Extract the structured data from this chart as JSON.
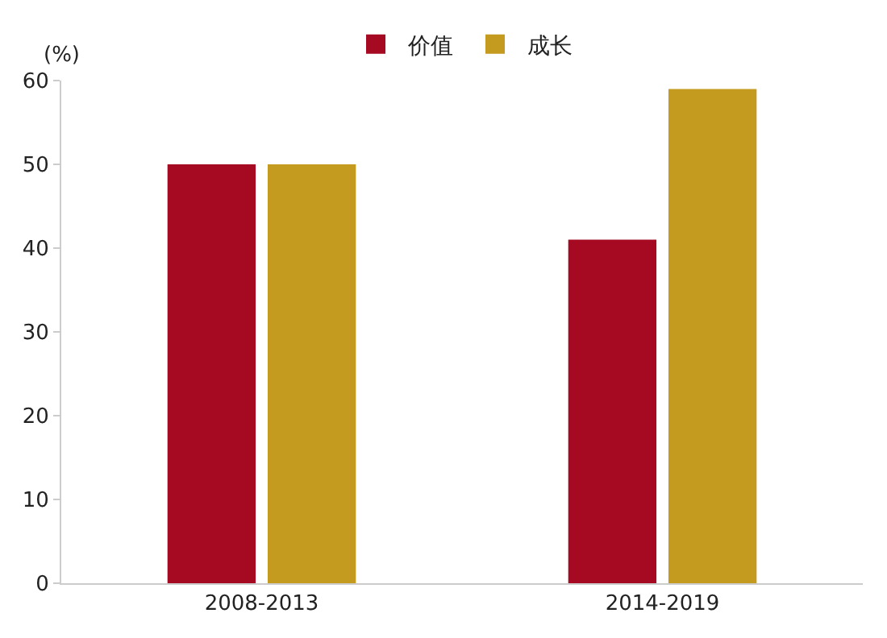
{
  "chart_data": {
    "type": "bar",
    "ylabel": "(%)",
    "categories": [
      "2008-2013",
      "2014-2019"
    ],
    "series": [
      {
        "name": "价值",
        "color": "#a50a22",
        "values": [
          50,
          41
        ]
      },
      {
        "name": "成长",
        "color": "#c49a1f",
        "values": [
          50,
          59
        ]
      }
    ],
    "ylim": [
      0,
      60
    ],
    "yticks": [
      0,
      10,
      20,
      30,
      40,
      50,
      60
    ],
    "grid": false,
    "legend": "top"
  }
}
